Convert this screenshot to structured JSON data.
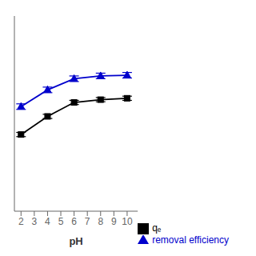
{
  "chart_data": {
    "type": "line",
    "x": [
      2,
      4,
      6,
      8,
      10
    ],
    "xlabel": "pH",
    "xlim": [
      1.5,
      10.8
    ],
    "xticks": [
      2,
      3,
      4,
      5,
      6,
      7,
      8,
      9,
      10
    ],
    "ylim": [
      0,
      140
    ],
    "yticks": [],
    "tick_labels": "x",
    "grid": false,
    "legend": "lower right",
    "series": [
      {
        "name": "removal efficiency",
        "color": "#0000cc",
        "marker": "triangle",
        "line_style": "solid",
        "values": [
          75,
          87,
          95,
          97,
          97.5
        ],
        "errors": [
          2.0,
          2.0,
          2.0,
          2.0,
          2.0
        ]
      },
      {
        "name": "qₑ",
        "color": "#000000",
        "marker": "square",
        "line_style": "solid",
        "values": [
          55,
          68,
          78,
          80,
          81
        ],
        "errors": [
          1.5,
          1.5,
          1.5,
          1.5,
          1.5
        ]
      }
    ]
  }
}
